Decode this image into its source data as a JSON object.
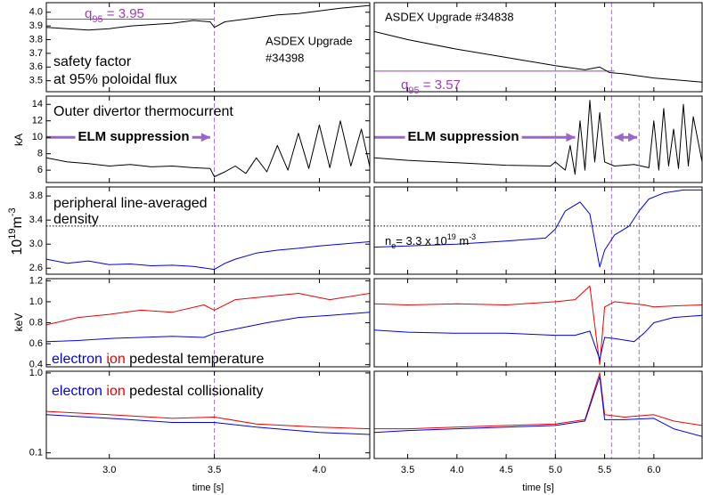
{
  "chart_data": [
    {
      "type": "line",
      "xlim": [
        2.7,
        4.24
      ],
      "ylim": [
        3.42,
        4.07
      ],
      "xticks": [
        {
          "value": 3,
          "label": "3.0"
        },
        3.5,
        {
          "value": 4,
          "label": "4.0"
        }
      ],
      "yticks": [
        3.5,
        3.6,
        3.7,
        3.8,
        3.9,
        {
          "value": 4,
          "label": "4.0"
        }
      ],
      "x": [
        2.7,
        2.8,
        2.9,
        3.0,
        3.1,
        3.2,
        3.3,
        3.4,
        3.48,
        3.5,
        3.55,
        3.7,
        3.8,
        3.9,
        4.0,
        4.1,
        4.24
      ],
      "series": [
        {
          "color": "#000000",
          "values": [
            3.89,
            3.88,
            3.87,
            3.88,
            3.9,
            3.91,
            3.92,
            3.94,
            3.93,
            3.89,
            3.93,
            3.96,
            3.98,
            3.99,
            4.01,
            4.03,
            4.05
          ]
        }
      ],
      "hlines": [
        {
          "y": 3.95,
          "x": [
            2.7,
            3.5
          ],
          "color": "#9b3fb5"
        }
      ],
      "vlines": [
        3.5
      ],
      "vline_color": "#a070f0",
      "annotations": [
        {
          "parts": [
            {
              "text": "q",
              "color": "#9b3fb5"
            },
            {
              "text": "95",
              "color": "#9b3fb5",
              "shift": "sub"
            },
            {
              "text": " = 3.95",
              "color": "#9b3fb5"
            }
          ]
        },
        {
          "text": "safety factor"
        },
        {
          "text": "at 95% poloidal flux"
        },
        {
          "text": "ASDEX Upgrade"
        },
        {
          "text": "#34398"
        }
      ]
    },
    {
      "type": "line",
      "xlim": [
        3.16,
        6.49
      ],
      "ylim": [
        3.42,
        4.07
      ],
      "xticks": [
        3.5,
        {
          "value": 4,
          "label": "4.0"
        },
        4.5,
        {
          "value": 5,
          "label": "5.0"
        },
        5.5,
        {
          "value": 6,
          "label": "6.0"
        }
      ],
      "x": [
        3.16,
        3.5,
        4.0,
        4.5,
        5.0,
        5.3,
        5.45,
        5.55,
        5.7,
        6.0,
        6.49
      ],
      "series": [
        {
          "color": "#000000",
          "values": [
            3.86,
            3.8,
            3.73,
            3.67,
            3.61,
            3.58,
            3.6,
            3.56,
            3.55,
            3.52,
            3.49
          ]
        }
      ],
      "hlines": [
        {
          "y": 3.57,
          "x": [
            3.16,
            5.6
          ],
          "color": "#9b3fb5"
        }
      ],
      "vlines": [
        5.0,
        5.57
      ],
      "vline_color": "#a070f0",
      "annotations": [
        {
          "text": "ASDEX Upgrade #34838"
        },
        {
          "parts": [
            {
              "text": "q",
              "color": "#9b3fb5"
            },
            {
              "text": "95",
              "color": "#9b3fb5",
              "shift": "sub"
            },
            {
              "text": " = 3.57",
              "color": "#9b3fb5"
            }
          ]
        }
      ]
    },
    {
      "type": "line",
      "xlim": [
        2.7,
        4.24
      ],
      "ylim": [
        4.5,
        15
      ],
      "xticks": [
        {
          "value": 3,
          "label": "3.0"
        },
        3.5,
        {
          "value": 4,
          "label": "4.0"
        }
      ],
      "yticks": [
        6,
        8,
        10,
        12,
        14
      ],
      "ylabel": "kA",
      "x": [
        2.7,
        2.8,
        2.9,
        3.0,
        3.1,
        3.2,
        3.3,
        3.4,
        3.48,
        3.5,
        3.55,
        3.6,
        3.65,
        3.7,
        3.75,
        3.8,
        3.85,
        3.9,
        3.95,
        4.0,
        4.05,
        4.1,
        4.15,
        4.2,
        4.24
      ],
      "series": [
        {
          "color": "#000000",
          "values": [
            7.5,
            7.0,
            6.8,
            6.5,
            6.7,
            6.4,
            6.5,
            6.3,
            6.2,
            5.2,
            5.8,
            6.5,
            5.6,
            7.5,
            5.8,
            9.0,
            6.0,
            10.5,
            6.2,
            11.5,
            6.3,
            12.0,
            6.5,
            11.0,
            6.4
          ]
        }
      ],
      "vlines": [
        3.5
      ],
      "vline_color": "#a070f0",
      "arrows": [
        {
          "x": [
            2.7,
            3.48
          ],
          "y": 10,
          "heads": "end",
          "color": "#9966cc"
        }
      ],
      "annotations": [
        {
          "text": "Outer divertor thermocurrent"
        },
        {
          "text": "ELM suppression",
          "color": "#9966cc",
          "bold": true
        }
      ]
    },
    {
      "type": "line",
      "xlim": [
        3.16,
        6.49
      ],
      "ylim": [
        4.5,
        15
      ],
      "xticks": [
        3.5,
        {
          "value": 4,
          "label": "4.0"
        },
        4.5,
        {
          "value": 5,
          "label": "5.0"
        },
        5.5,
        {
          "value": 6,
          "label": "6.0"
        }
      ],
      "x": [
        3.16,
        3.5,
        4.0,
        4.5,
        4.95,
        5.0,
        5.1,
        5.15,
        5.2,
        5.25,
        5.3,
        5.35,
        5.4,
        5.45,
        5.5,
        5.6,
        5.8,
        5.95,
        6.0,
        6.05,
        6.1,
        6.15,
        6.2,
        6.25,
        6.3,
        6.35,
        6.4,
        6.49
      ],
      "series": [
        {
          "color": "#000000",
          "values": [
            7.5,
            7.2,
            6.9,
            6.6,
            6.5,
            7.0,
            6.0,
            9.0,
            5.5,
            12.0,
            6.0,
            14.5,
            7.0,
            13.0,
            7.0,
            6.5,
            6.7,
            6.3,
            12.0,
            6.0,
            13.5,
            6.5,
            11.0,
            6.2,
            14.0,
            6.5,
            12.5,
            7.0
          ]
        }
      ],
      "vlines": [
        5.0,
        5.57,
        5.85
      ],
      "vline_color": "#a070f0",
      "arrows": [
        {
          "x": [
            3.16,
            5.2
          ],
          "y": 10,
          "heads": "end",
          "color": "#9966cc"
        },
        {
          "x": [
            5.6,
            5.83
          ],
          "y": 10,
          "heads": "both",
          "color": "#9966cc"
        }
      ],
      "annotations": [
        {
          "text": "ELM suppression",
          "color": "#9966cc",
          "bold": true
        }
      ]
    },
    {
      "type": "line",
      "xlim": [
        2.7,
        4.24
      ],
      "ylim": [
        2.5,
        3.95
      ],
      "xticks": [
        {
          "value": 3,
          "label": "3.0"
        },
        3.5,
        {
          "value": 4,
          "label": "4.0"
        }
      ],
      "yticks": [
        2.6,
        {
          "value": 3,
          "label": "3.0"
        },
        3.4,
        3.8
      ],
      "ylabel": {
        "parts": [
          {
            "text": "10"
          },
          {
            "text": "19",
            "shift": "super"
          },
          {
            "text": "m"
          },
          {
            "text": "-3",
            "shift": "super"
          }
        ]
      },
      "x": [
        2.7,
        2.8,
        2.9,
        3.0,
        3.1,
        3.2,
        3.3,
        3.4,
        3.5,
        3.55,
        3.6,
        3.7,
        3.8,
        3.9,
        4.0,
        4.1,
        4.24
      ],
      "series": [
        {
          "color": "#0000ee",
          "values": [
            2.75,
            2.68,
            2.72,
            2.66,
            2.67,
            2.64,
            2.65,
            2.63,
            2.58,
            2.68,
            2.75,
            2.85,
            2.9,
            2.93,
            2.97,
            3.0,
            3.04
          ]
        }
      ],
      "hlines": [
        {
          "y": 3.3,
          "x": [
            2.7,
            4.24
          ],
          "color": "#000000",
          "style": "dotted"
        }
      ],
      "vlines": [
        3.5
      ],
      "vline_color": "#a070f0",
      "annotations": [
        {
          "text": "peripheral line-averaged"
        },
        {
          "text": "density"
        }
      ]
    },
    {
      "type": "line",
      "xlim": [
        3.16,
        6.49
      ],
      "ylim": [
        2.5,
        3.95
      ],
      "xticks": [
        3.5,
        {
          "value": 4,
          "label": "4.0"
        },
        4.5,
        {
          "value": 5,
          "label": "5.0"
        },
        5.5,
        {
          "value": 6,
          "label": "6.0"
        }
      ],
      "x": [
        3.16,
        3.5,
        4.0,
        4.5,
        4.9,
        5.0,
        5.1,
        5.25,
        5.35,
        5.45,
        5.5,
        5.6,
        5.75,
        5.85,
        5.95,
        6.1,
        6.3,
        6.49
      ],
      "series": [
        {
          "color": "#0000ee",
          "values": [
            2.95,
            2.97,
            3.0,
            3.05,
            3.1,
            3.25,
            3.55,
            3.7,
            3.5,
            2.62,
            2.9,
            3.15,
            3.3,
            3.55,
            3.75,
            3.85,
            3.9,
            3.9
          ]
        }
      ],
      "hlines": [
        {
          "y": 3.3,
          "x": [
            3.16,
            6.49
          ],
          "color": "#000000",
          "style": "dotted"
        }
      ],
      "vlines": [
        5.0,
        5.57,
        5.85
      ],
      "vline_color": "#a070f0",
      "annotations": [
        {
          "parts": [
            {
              "text": "n"
            },
            {
              "text": "e",
              "shift": "sub"
            },
            {
              "text": "= 3.3 x 10"
            },
            {
              "text": "19",
              "shift": "super"
            },
            {
              "text": " m"
            },
            {
              "text": "-3",
              "shift": "super"
            }
          ]
        }
      ]
    },
    {
      "type": "line",
      "xlim": [
        2.7,
        4.24
      ],
      "ylim": [
        0.38,
        1.22
      ],
      "xticks": [
        {
          "value": 3,
          "label": "3.0"
        },
        3.5,
        {
          "value": 4,
          "label": "4.0"
        }
      ],
      "yticks": [
        0.4,
        0.6,
        0.8,
        {
          "value": 1,
          "label": "1.0"
        },
        1.2
      ],
      "ylabel": "keV",
      "x": [
        2.7,
        2.85,
        3.0,
        3.15,
        3.3,
        3.45,
        3.5,
        3.6,
        3.75,
        3.9,
        4.05,
        4.24
      ],
      "series": [
        {
          "color": "#ee0000",
          "values": [
            0.78,
            0.85,
            0.88,
            0.92,
            0.9,
            0.97,
            0.92,
            1.02,
            1.05,
            1.08,
            1.02,
            1.08
          ]
        },
        {
          "color": "#0000ee",
          "values": [
            0.62,
            0.63,
            0.65,
            0.66,
            0.67,
            0.66,
            0.7,
            0.74,
            0.8,
            0.85,
            0.87,
            0.9
          ]
        }
      ],
      "vlines": [
        3.5
      ],
      "vline_color": "#a070f0",
      "annotations": [
        {
          "parts": [
            {
              "text": "electron",
              "color": "#0000ee"
            },
            {
              "text": " ion",
              "color": "#ee0000"
            },
            {
              "text": " pedestal temperature"
            }
          ]
        }
      ]
    },
    {
      "type": "line",
      "xlim": [
        3.16,
        6.49
      ],
      "ylim": [
        0.38,
        1.22
      ],
      "xticks": [
        3.5,
        {
          "value": 4,
          "label": "4.0"
        },
        4.5,
        {
          "value": 5,
          "label": "5.0"
        },
        5.5,
        {
          "value": 6,
          "label": "6.0"
        }
      ],
      "x": [
        3.16,
        3.5,
        4.0,
        4.5,
        5.0,
        5.2,
        5.35,
        5.45,
        5.5,
        5.6,
        5.8,
        5.9,
        6.0,
        6.2,
        6.49
      ],
      "series": [
        {
          "color": "#ee0000",
          "values": [
            0.98,
            0.97,
            0.98,
            0.97,
            1.0,
            1.02,
            1.15,
            0.4,
            0.95,
            1.0,
            0.98,
            0.97,
            0.95,
            0.96,
            0.97
          ]
        },
        {
          "color": "#0000ee",
          "values": [
            0.73,
            0.71,
            0.7,
            0.7,
            0.68,
            0.68,
            0.72,
            0.45,
            0.66,
            0.65,
            0.62,
            0.7,
            0.8,
            0.85,
            0.87
          ]
        }
      ],
      "vlines": [
        5.0,
        5.57,
        5.85
      ],
      "vline_color": "#a070f0"
    },
    {
      "type": "line",
      "xlim": [
        2.7,
        4.24
      ],
      "ylim": [
        0.085,
        1.05
      ],
      "ylog": true,
      "xticks": [
        {
          "value": 3,
          "label": "3.0"
        },
        3.5,
        {
          "value": 4,
          "label": "4.0"
        }
      ],
      "yticks": [
        0.1,
        {
          "value": 1,
          "label": "1.0"
        }
      ],
      "xlabel": "time [s]",
      "x": [
        2.7,
        3.0,
        3.3,
        3.5,
        3.7,
        4.0,
        4.24
      ],
      "series": [
        {
          "color": "#ee0000",
          "values": [
            0.33,
            0.3,
            0.27,
            0.28,
            0.23,
            0.21,
            0.2
          ]
        },
        {
          "color": "#0000ee",
          "values": [
            0.3,
            0.27,
            0.24,
            0.24,
            0.21,
            0.18,
            0.17
          ]
        }
      ],
      "vlines": [
        3.5
      ],
      "vline_color": "#a070f0",
      "annotations": [
        {
          "parts": [
            {
              "text": "electron",
              "color": "#0000ee"
            },
            {
              "text": " ion",
              "color": "#ee0000"
            },
            {
              "text": "  pedestal collisionality"
            }
          ]
        }
      ]
    },
    {
      "type": "line",
      "xlim": [
        3.16,
        6.49
      ],
      "ylim": [
        0.085,
        1.05
      ],
      "ylog": true,
      "xticks": [
        3.5,
        {
          "value": 4,
          "label": "4.0"
        },
        4.5,
        {
          "value": 5,
          "label": "5.0"
        },
        5.5,
        {
          "value": 6,
          "label": "6.0"
        }
      ],
      "xlabel": "time [s]",
      "x": [
        3.16,
        3.5,
        4.0,
        4.5,
        5.0,
        5.3,
        5.45,
        5.5,
        5.7,
        6.0,
        6.2,
        6.49
      ],
      "series": [
        {
          "color": "#ee0000",
          "values": [
            0.2,
            0.2,
            0.21,
            0.22,
            0.23,
            0.26,
            1.0,
            0.3,
            0.28,
            0.3,
            0.25,
            0.22
          ]
        },
        {
          "color": "#0000ee",
          "values": [
            0.18,
            0.19,
            0.2,
            0.21,
            0.22,
            0.25,
            0.9,
            0.26,
            0.26,
            0.27,
            0.2,
            0.16
          ]
        }
      ],
      "vlines": [
        5.0,
        5.57,
        5.85
      ],
      "vline_color": "#a070f0"
    }
  ]
}
